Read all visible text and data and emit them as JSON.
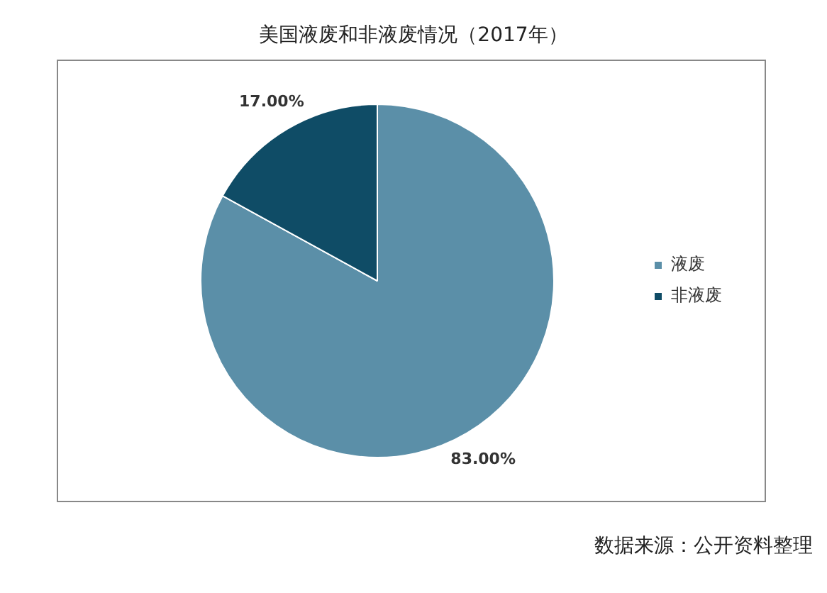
{
  "chart_data": {
    "type": "pie",
    "title": "美国液废和非液废情况（2017年）",
    "categories": [
      "液废",
      "非液废"
    ],
    "values": [
      83,
      17
    ],
    "value_labels": [
      "83.00%",
      "17.00%"
    ],
    "colors": [
      "#5b8fa8",
      "#0f4c66"
    ],
    "legend": "right",
    "annotations": [
      "数据来源：公开资料整理"
    ]
  }
}
